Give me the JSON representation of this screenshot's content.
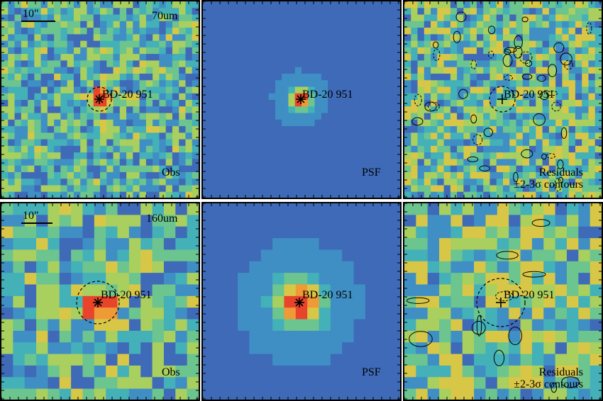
{
  "source_name": "BD-20 951",
  "rows": [
    {
      "band": "70um",
      "scale_label": "10\"",
      "panels": [
        {
          "kind": "obs",
          "label": "Obs"
        },
        {
          "kind": "psf",
          "label": "PSF"
        },
        {
          "kind": "residual",
          "label": "Residuals",
          "label2": "±2-3σ contours"
        }
      ]
    },
    {
      "band": "160um",
      "scale_label": "10\"",
      "panels": [
        {
          "kind": "obs",
          "label": "Obs"
        },
        {
          "kind": "psf",
          "label": "PSF"
        },
        {
          "kind": "residual",
          "label": "Residuals",
          "label2": "±2-3σ contours"
        }
      ]
    }
  ],
  "colors": {
    "psf_background": "#3f6fbf",
    "peak": "#e8442c",
    "palette": [
      "#3b1f7a",
      "#4a3da0",
      "#3e6ab8",
      "#3f8fc4",
      "#44b0b8",
      "#6cc48e",
      "#a9cf5e",
      "#d8c746",
      "#ef9a36",
      "#e8442c"
    ]
  }
}
